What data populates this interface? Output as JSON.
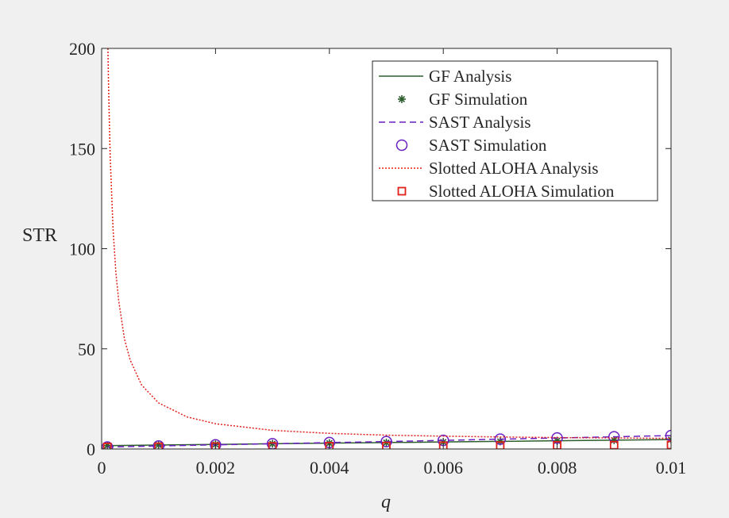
{
  "chart_data": {
    "type": "line",
    "title": "",
    "xlabel": "q",
    "ylabel": "STR",
    "xlim": [
      0,
      0.01
    ],
    "ylim": [
      0,
      200
    ],
    "xticks": [
      0,
      0.002,
      0.004,
      0.006,
      0.008,
      0.01
    ],
    "xtick_labels": [
      "0",
      "0.002",
      "0.004",
      "0.006",
      "0.008",
      "0.01"
    ],
    "yticks": [
      0,
      50,
      100,
      150,
      200
    ],
    "ytick_labels": [
      "0",
      "50",
      "100",
      "150",
      "200"
    ],
    "grid": false,
    "legend_position": "top-right",
    "series": [
      {
        "name": "GF Analysis",
        "kind": "line",
        "style": "solid",
        "color": "#2e5e2e",
        "x": [
          0.0001,
          0.001,
          0.002,
          0.003,
          0.004,
          0.005,
          0.006,
          0.007,
          0.008,
          0.009,
          0.01
        ],
        "y": [
          1.7,
          2.0,
          2.3,
          2.6,
          2.9,
          3.2,
          3.5,
          3.8,
          4.1,
          4.4,
          4.7
        ]
      },
      {
        "name": "GF Simulation",
        "kind": "marker",
        "marker": "asterisk",
        "color": "#2e5e2e",
        "x": [
          0.0001,
          0.001,
          0.002,
          0.003,
          0.004,
          0.005,
          0.006,
          0.007,
          0.008,
          0.009,
          0.01
        ],
        "y": [
          1.7,
          2.0,
          2.3,
          2.6,
          2.9,
          3.2,
          3.5,
          3.8,
          4.1,
          4.4,
          4.7
        ]
      },
      {
        "name": "SAST Analysis",
        "kind": "line",
        "style": "dashed",
        "color": "#6a1fc2",
        "x": [
          0.0001,
          0.001,
          0.002,
          0.003,
          0.004,
          0.005,
          0.006,
          0.007,
          0.008,
          0.009,
          0.01
        ],
        "y": [
          1.0,
          1.5,
          2.1,
          2.6,
          3.2,
          3.7,
          4.3,
          4.9,
          5.5,
          6.1,
          6.7
        ]
      },
      {
        "name": "SAST Simulation",
        "kind": "marker",
        "marker": "circle",
        "color": "#6a1fc2",
        "x": [
          0.0001,
          0.001,
          0.002,
          0.003,
          0.004,
          0.005,
          0.006,
          0.007,
          0.008,
          0.009,
          0.01
        ],
        "y": [
          1.0,
          1.5,
          2.1,
          2.6,
          3.2,
          3.7,
          4.3,
          4.9,
          5.5,
          6.1,
          6.7
        ]
      },
      {
        "name": "Slotted ALOHA Analysis",
        "kind": "line",
        "style": "dotted",
        "color": "#e0201b",
        "x": [
          0.00011,
          0.00012,
          0.00015,
          0.0002,
          0.00025,
          0.0003,
          0.0004,
          0.0005,
          0.0007,
          0.001,
          0.0015,
          0.002,
          0.003,
          0.004,
          0.005,
          0.006,
          0.007,
          0.008,
          0.009,
          0.01
        ],
        "y": [
          200,
          183,
          146,
          110,
          88,
          74,
          55,
          44.5,
          32,
          23,
          16,
          12.6,
          9.3,
          7.8,
          6.9,
          6.4,
          6.0,
          5.7,
          5.5,
          5.3
        ]
      },
      {
        "name": "Slotted ALOHA Simulation",
        "kind": "marker",
        "marker": "square",
        "color": "#e0201b",
        "x": [
          0.0001,
          0.001,
          0.002,
          0.003,
          0.004,
          0.005,
          0.006,
          0.007,
          0.008,
          0.009,
          0.01
        ],
        "y": [
          1.0,
          1.1,
          1.2,
          1.3,
          1.4,
          1.5,
          1.6,
          1.7,
          1.8,
          1.9,
          2.0
        ]
      }
    ]
  }
}
